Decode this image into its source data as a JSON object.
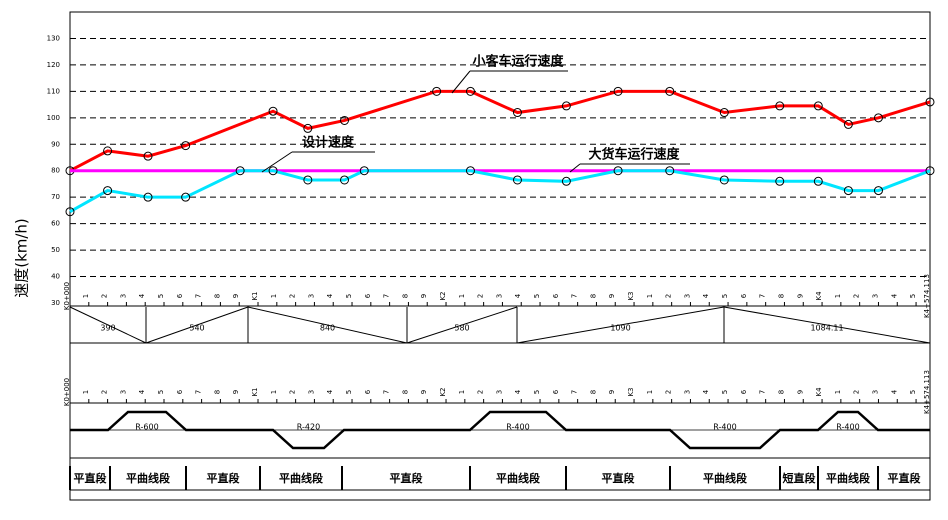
{
  "chart_data": {
    "type": "line",
    "ylabel": "速度(km/h)",
    "ylim": [
      30,
      140
    ],
    "yticks": [
      30,
      40,
      50,
      60,
      70,
      80,
      90,
      100,
      110,
      120,
      130
    ],
    "xlim": [
      0,
      4574.113
    ],
    "xticks": [
      {
        "value": 0,
        "label": "K0+000"
      },
      {
        "value": 100,
        "label": "1"
      },
      {
        "value": 200,
        "label": "2"
      },
      {
        "value": 300,
        "label": "3"
      },
      {
        "value": 400,
        "label": "4"
      },
      {
        "value": 500,
        "label": "5"
      },
      {
        "value": 600,
        "label": "6"
      },
      {
        "value": 700,
        "label": "7"
      },
      {
        "value": 800,
        "label": "8"
      },
      {
        "value": 900,
        "label": "9"
      },
      {
        "value": 1000,
        "label": "K1"
      },
      {
        "value": 1100,
        "label": "1"
      },
      {
        "value": 1200,
        "label": "2"
      },
      {
        "value": 1300,
        "label": "3"
      },
      {
        "value": 1400,
        "label": "4"
      },
      {
        "value": 1500,
        "label": "5"
      },
      {
        "value": 1600,
        "label": "6"
      },
      {
        "value": 1700,
        "label": "7"
      },
      {
        "value": 1800,
        "label": "8"
      },
      {
        "value": 1900,
        "label": "9"
      },
      {
        "value": 2000,
        "label": "K2"
      },
      {
        "value": 2100,
        "label": "1"
      },
      {
        "value": 2200,
        "label": "2"
      },
      {
        "value": 2300,
        "label": "3"
      },
      {
        "value": 2400,
        "label": "4"
      },
      {
        "value": 2500,
        "label": "5"
      },
      {
        "value": 2600,
        "label": "6"
      },
      {
        "value": 2700,
        "label": "7"
      },
      {
        "value": 2800,
        "label": "8"
      },
      {
        "value": 2900,
        "label": "9"
      },
      {
        "value": 3000,
        "label": "K3"
      },
      {
        "value": 3100,
        "label": "1"
      },
      {
        "value": 3200,
        "label": "2"
      },
      {
        "value": 3300,
        "label": "3"
      },
      {
        "value": 3400,
        "label": "4"
      },
      {
        "value": 3500,
        "label": "5"
      },
      {
        "value": 3600,
        "label": "6"
      },
      {
        "value": 3700,
        "label": "7"
      },
      {
        "value": 3800,
        "label": "8"
      },
      {
        "value": 3900,
        "label": "9"
      },
      {
        "value": 4000,
        "label": "K4"
      },
      {
        "value": 4100,
        "label": "1"
      },
      {
        "value": 4200,
        "label": "2"
      },
      {
        "value": 4300,
        "label": "3"
      },
      {
        "value": 4400,
        "label": "4"
      },
      {
        "value": 4500,
        "label": "5"
      },
      {
        "value": 4574.113,
        "label": "K4+574.113"
      }
    ],
    "grid": true,
    "series": [
      {
        "name": "小客车运行速度",
        "color": "#ff0000",
        "x": [
          0,
          200,
          415,
          615,
          1080,
          1265,
          1460,
          1950,
          2130,
          2380,
          2640,
          2915,
          3190,
          3480,
          3775,
          3980,
          4140,
          4300,
          4574.113
        ],
        "values": [
          80,
          87.5,
          85.5,
          89.5,
          102.5,
          96,
          99,
          110,
          110,
          102,
          104.5,
          110,
          110,
          102,
          104.5,
          104.5,
          97.5,
          100,
          106
        ]
      },
      {
        "name": "设计速度",
        "color": "#ff00ff",
        "x": [
          0,
          4574.113
        ],
        "values": [
          80,
          80
        ]
      },
      {
        "name": "大货车运行速度",
        "color": "#00e5ff",
        "x": [
          0,
          200,
          415,
          615,
          905,
          1080,
          1265,
          1460,
          1565,
          2130,
          2380,
          2640,
          2915,
          3190,
          3480,
          3775,
          3980,
          4140,
          4300,
          4574.113
        ],
        "values": [
          64.5,
          72.5,
          70,
          70,
          80,
          80,
          76.5,
          76.5,
          80,
          80,
          76.5,
          76,
          80,
          80,
          76.5,
          76,
          76,
          72.5,
          72.5,
          80
        ]
      }
    ],
    "grades": [
      "390",
      "540",
      "840",
      "580",
      "1090",
      "1084.11"
    ],
    "curves": [
      "R-600",
      "R-420",
      "R-400",
      "R-400",
      "R-400"
    ],
    "segments": [
      "平直段",
      "平曲线段",
      "平直段",
      "平曲线段",
      "平直段",
      "平曲线段",
      "平直段",
      "平曲线段",
      "短直段",
      "平曲线段",
      "平直段"
    ]
  }
}
